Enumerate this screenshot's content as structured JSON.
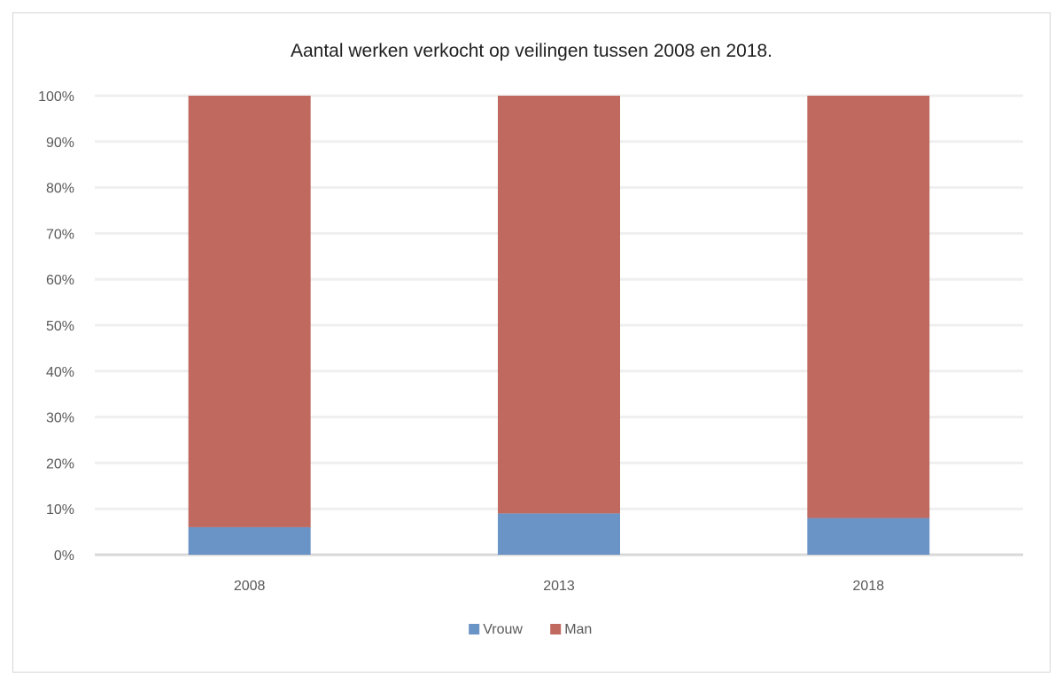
{
  "chart_data": {
    "type": "bar",
    "stacked": true,
    "title": "Aantal werken verkocht op veilingen tussen 2008 en 2018.",
    "categories": [
      "2008",
      "2013",
      "2018"
    ],
    "series": [
      {
        "name": "Vrouw",
        "values": [
          6,
          9,
          8
        ],
        "color": "#6a93c6"
      },
      {
        "name": "Man",
        "values": [
          94,
          91,
          92
        ],
        "color": "#c0695f"
      }
    ],
    "xlabel": "",
    "ylabel": "",
    "ylim": [
      0,
      100
    ],
    "yticks": [
      "0%",
      "10%",
      "20%",
      "30%",
      "40%",
      "50%",
      "60%",
      "70%",
      "80%",
      "90%",
      "100%"
    ],
    "grid": true,
    "legend": "bottom"
  }
}
